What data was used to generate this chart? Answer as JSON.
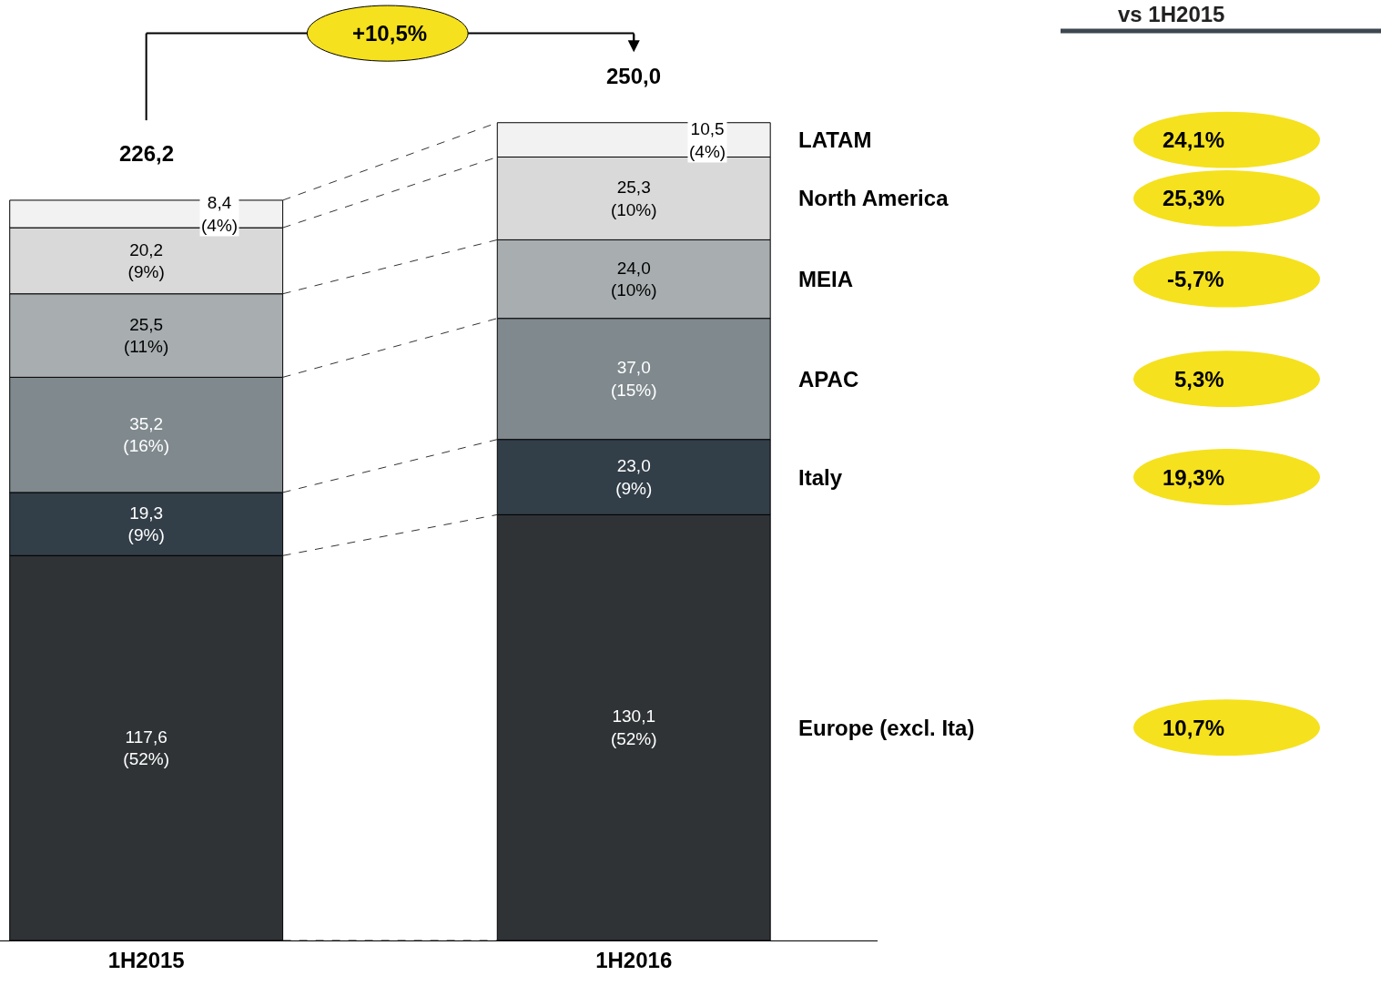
{
  "chart_data": {
    "type": "bar",
    "stacked": true,
    "categories": [
      "1H2015",
      "1H2016"
    ],
    "series": [
      {
        "name": "Europe (excl. Ita)",
        "color": "#2f3336",
        "values": [
          117.6,
          130.1
        ],
        "value_labels": [
          "117,6\n(52%)",
          "130,1\n(52%)"
        ]
      },
      {
        "name": "Italy",
        "color": "#323e48",
        "values": [
          19.3,
          23.0
        ],
        "value_labels": [
          "19,3\n(9%)",
          "23,0\n(9%)"
        ]
      },
      {
        "name": "APAC",
        "color": "#7f898e",
        "values": [
          35.2,
          37.0
        ],
        "value_labels": [
          "35,2\n(16%)",
          "37,0\n(15%)"
        ]
      },
      {
        "name": "MEIA",
        "color": "#a8aeb0",
        "values": [
          25.5,
          24.0
        ],
        "value_labels": [
          "25,5\n(11%)",
          "24,0\n(10%)"
        ]
      },
      {
        "name": "North America",
        "color": "#d9d9d9",
        "values": [
          20.2,
          25.3
        ],
        "value_labels": [
          "20,2\n(9%)",
          "25,3\n(10%)"
        ]
      },
      {
        "name": "LATAM",
        "color": "#f2f2f2",
        "values": [
          8.4,
          10.5
        ],
        "value_labels": [
          "8,4\n(4%)",
          "10,5\n(4%)"
        ]
      }
    ],
    "totals": [
      "226,2",
      "250,0"
    ],
    "annotations": [
      "vs 1H2015",
      "+10,5%",
      "10,7%",
      "19,3%",
      "5,3%",
      "-5,7%",
      "25,3%",
      "24,1%"
    ],
    "legend": false
  }
}
